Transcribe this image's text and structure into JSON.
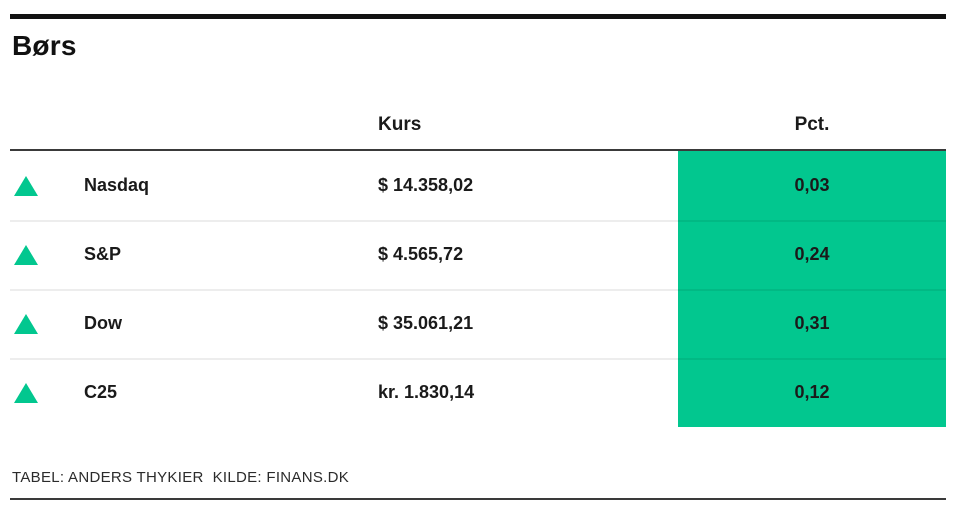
{
  "title": "Børs",
  "colors": {
    "positive": "#02c78f",
    "text": "#1a1a1a",
    "rule-dark": "#3a3a3a",
    "top-bar": "#121212",
    "divider": "rgba(0,0,0,0.07)",
    "footer-text": "#2b2b2b"
  },
  "table": {
    "headers": {
      "kurs": "Kurs",
      "pct": "Pct."
    },
    "rows": [
      {
        "direction": "up",
        "name": "Nasdaq",
        "kurs": "$ 14.358,02",
        "pct": "0,03"
      },
      {
        "direction": "up",
        "name": "S&P",
        "kurs": "$ 4.565,72",
        "pct": "0,24"
      },
      {
        "direction": "up",
        "name": "Dow",
        "kurs": "$ 35.061,21",
        "pct": "0,31"
      },
      {
        "direction": "up",
        "name": "C25",
        "kurs": "kr. 1.830,14",
        "pct": "0,12"
      }
    ]
  },
  "footer": {
    "credit": "TABEL: ANDERS THYKIER  KILDE: FINANS.DK"
  },
  "chart_data": {
    "type": "table",
    "title": "Børs",
    "columns": [
      "",
      "Kurs",
      "Pct."
    ],
    "rows": [
      [
        "Nasdaq",
        "$ 14.358,02",
        "0,03"
      ],
      [
        "S&P",
        "$ 4.565,72",
        "0,24"
      ],
      [
        "Dow",
        "$ 35.061,21",
        "0,31"
      ],
      [
        "C25",
        "kr. 1.830,14",
        "0,12"
      ]
    ],
    "row_direction": [
      "up",
      "up",
      "up",
      "up"
    ],
    "pct_column_highlight": "#02c78f",
    "notes": "TABEL: ANDERS THYKIER  KILDE: FINANS.DK"
  }
}
